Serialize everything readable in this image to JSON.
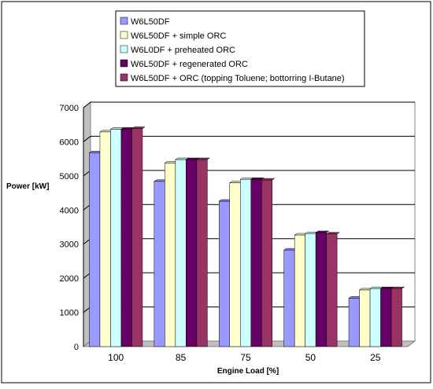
{
  "chart_data": {
    "type": "bar",
    "title": "",
    "xlabel": "Engine Load [%]",
    "ylabel": "Power [kW]",
    "categories": [
      "100",
      "85",
      "75",
      "50",
      "25"
    ],
    "ylim": [
      0,
      7000
    ],
    "yticks": [
      "0",
      "1000",
      "2000",
      "3000",
      "4000",
      "5000",
      "6000",
      "7000"
    ],
    "grid": true,
    "legend_position": "top",
    "series": [
      {
        "name": "W6L50DF",
        "color": "#9999ff",
        "values": [
          5680,
          4840,
          4260,
          2830,
          1420
        ]
      },
      {
        "name": "W6L50DF + simple ORC",
        "color": "#ffffcc",
        "values": [
          6290,
          5380,
          4800,
          3270,
          1660
        ]
      },
      {
        "name": "W6L0DF + preheated ORC",
        "color": "#ccffff",
        "values": [
          6370,
          5480,
          4900,
          3310,
          1700
        ]
      },
      {
        "name": "W6L50DF + regenerated ORC",
        "color": "#660066",
        "values": [
          6370,
          5480,
          4900,
          3340,
          1700
        ]
      },
      {
        "name": "W6L50DF + ORC (topping Toluene; bottorring I-Butane)",
        "color": "#993366",
        "values": [
          6390,
          5480,
          4880,
          3300,
          1700
        ]
      }
    ]
  }
}
